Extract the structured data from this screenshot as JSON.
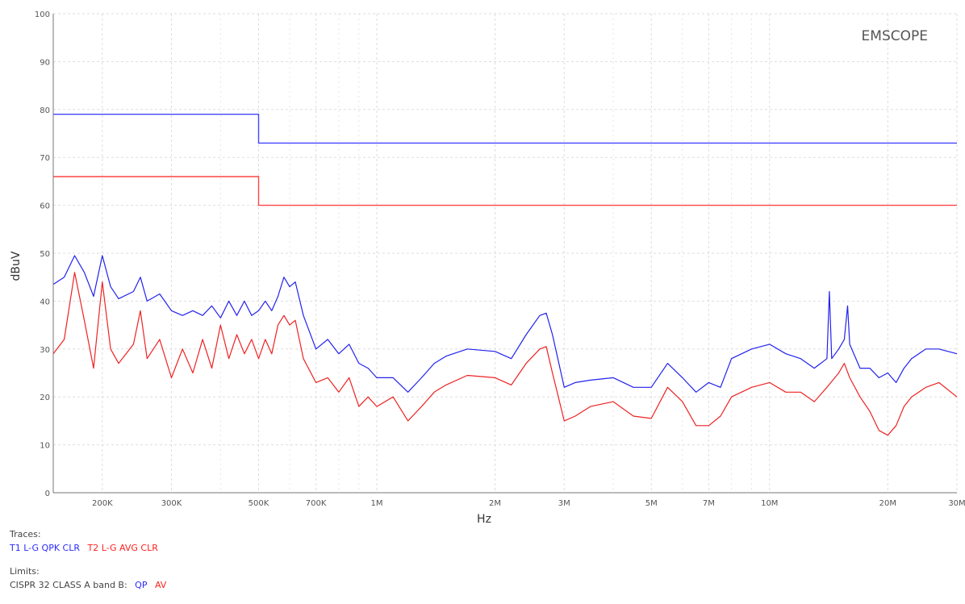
{
  "chart_data": {
    "type": "line",
    "title": "",
    "watermark": "EMSCOPE",
    "xlabel": "Hz",
    "ylabel": "dBuV",
    "xscale": "log",
    "xlim": [
      150000,
      30000000
    ],
    "ylim": [
      0,
      100
    ],
    "grid": true,
    "y_ticks": [
      0,
      10,
      20,
      30,
      40,
      50,
      60,
      70,
      80,
      90,
      100
    ],
    "x_ticks": [
      {
        "value": 200000,
        "label": "200K"
      },
      {
        "value": 300000,
        "label": "300K"
      },
      {
        "value": 500000,
        "label": "500K"
      },
      {
        "value": 700000,
        "label": "700K"
      },
      {
        "value": 1000000,
        "label": "1M"
      },
      {
        "value": 2000000,
        "label": "2M"
      },
      {
        "value": 3000000,
        "label": "3M"
      },
      {
        "value": 5000000,
        "label": "5M"
      },
      {
        "value": 7000000,
        "label": "7M"
      },
      {
        "value": 10000000,
        "label": "10M"
      },
      {
        "value": 20000000,
        "label": "20M"
      },
      {
        "value": 30000000,
        "label": "30M"
      }
    ],
    "x_minor_grid": [
      150000,
      400000,
      600000,
      800000,
      900000,
      4000000,
      6000000,
      8000000,
      9000000
    ],
    "limits": [
      {
        "name": "QP",
        "color": "#4444ff",
        "points": [
          [
            150000,
            79
          ],
          [
            500000,
            79
          ],
          [
            500000,
            73
          ],
          [
            30000000,
            73
          ]
        ]
      },
      {
        "name": "AV",
        "color": "#ff4444",
        "points": [
          [
            150000,
            66
          ],
          [
            500000,
            66
          ],
          [
            500000,
            60
          ],
          [
            30000000,
            60
          ]
        ]
      }
    ],
    "series": [
      {
        "name": "T1 L-G QPK CLR",
        "color": "#2222ee",
        "points": [
          [
            150000,
            43.5
          ],
          [
            160000,
            45
          ],
          [
            170000,
            49.5
          ],
          [
            180000,
            46
          ],
          [
            190000,
            41
          ],
          [
            200000,
            49.5
          ],
          [
            210000,
            43
          ],
          [
            220000,
            40.5
          ],
          [
            240000,
            42
          ],
          [
            250000,
            45
          ],
          [
            260000,
            40
          ],
          [
            280000,
            41.5
          ],
          [
            300000,
            38
          ],
          [
            320000,
            37
          ],
          [
            340000,
            38
          ],
          [
            360000,
            37
          ],
          [
            380000,
            39
          ],
          [
            400000,
            36.5
          ],
          [
            420000,
            40
          ],
          [
            440000,
            37
          ],
          [
            460000,
            40
          ],
          [
            480000,
            37
          ],
          [
            500000,
            38
          ],
          [
            520000,
            40
          ],
          [
            540000,
            38
          ],
          [
            560000,
            41
          ],
          [
            580000,
            45
          ],
          [
            600000,
            43
          ],
          [
            620000,
            44
          ],
          [
            650000,
            37
          ],
          [
            700000,
            30
          ],
          [
            750000,
            32
          ],
          [
            800000,
            29
          ],
          [
            850000,
            31
          ],
          [
            900000,
            27
          ],
          [
            950000,
            26
          ],
          [
            1000000,
            24
          ],
          [
            1100000,
            24
          ],
          [
            1200000,
            21
          ],
          [
            1300000,
            24
          ],
          [
            1400000,
            27
          ],
          [
            1500000,
            28.5
          ],
          [
            1700000,
            30
          ],
          [
            2000000,
            29.5
          ],
          [
            2200000,
            28
          ],
          [
            2400000,
            33
          ],
          [
            2600000,
            37
          ],
          [
            2700000,
            37.5
          ],
          [
            2800000,
            33
          ],
          [
            3000000,
            22
          ],
          [
            3200000,
            23
          ],
          [
            3500000,
            23.5
          ],
          [
            4000000,
            24
          ],
          [
            4500000,
            22
          ],
          [
            5000000,
            22
          ],
          [
            5500000,
            27
          ],
          [
            6000000,
            24
          ],
          [
            6500000,
            21
          ],
          [
            7000000,
            23
          ],
          [
            7500000,
            22
          ],
          [
            8000000,
            28
          ],
          [
            9000000,
            30
          ],
          [
            10000000,
            31
          ],
          [
            11000000,
            29
          ],
          [
            12000000,
            28
          ],
          [
            13000000,
            26
          ],
          [
            14000000,
            28
          ],
          [
            14200000,
            42
          ],
          [
            14400000,
            28
          ],
          [
            15000000,
            30
          ],
          [
            15500000,
            32
          ],
          [
            15800000,
            39
          ],
          [
            16000000,
            31
          ],
          [
            17000000,
            26
          ],
          [
            18000000,
            26
          ],
          [
            19000000,
            24
          ],
          [
            20000000,
            25
          ],
          [
            21000000,
            23
          ],
          [
            22000000,
            26
          ],
          [
            23000000,
            28
          ],
          [
            25000000,
            30
          ],
          [
            27000000,
            30
          ],
          [
            30000000,
            29
          ]
        ]
      },
      {
        "name": "T2 L-G AVG CLR",
        "color": "#ee2222",
        "points": [
          [
            150000,
            29
          ],
          [
            160000,
            32
          ],
          [
            170000,
            46
          ],
          [
            180000,
            36
          ],
          [
            190000,
            26
          ],
          [
            200000,
            44
          ],
          [
            210000,
            30
          ],
          [
            220000,
            27
          ],
          [
            240000,
            31
          ],
          [
            250000,
            38
          ],
          [
            260000,
            28
          ],
          [
            280000,
            32
          ],
          [
            300000,
            24
          ],
          [
            320000,
            30
          ],
          [
            340000,
            25
          ],
          [
            360000,
            32
          ],
          [
            380000,
            26
          ],
          [
            400000,
            35
          ],
          [
            420000,
            28
          ],
          [
            440000,
            33
          ],
          [
            460000,
            29
          ],
          [
            480000,
            32
          ],
          [
            500000,
            28
          ],
          [
            520000,
            32
          ],
          [
            540000,
            29
          ],
          [
            560000,
            35
          ],
          [
            580000,
            37
          ],
          [
            600000,
            35
          ],
          [
            620000,
            36
          ],
          [
            650000,
            28
          ],
          [
            700000,
            23
          ],
          [
            750000,
            24
          ],
          [
            800000,
            21
          ],
          [
            850000,
            24
          ],
          [
            900000,
            18
          ],
          [
            950000,
            20
          ],
          [
            1000000,
            18
          ],
          [
            1100000,
            20
          ],
          [
            1200000,
            15
          ],
          [
            1300000,
            18
          ],
          [
            1400000,
            21
          ],
          [
            1500000,
            22.5
          ],
          [
            1700000,
            24.5
          ],
          [
            2000000,
            24
          ],
          [
            2200000,
            22.5
          ],
          [
            2400000,
            27
          ],
          [
            2600000,
            30
          ],
          [
            2700000,
            30.5
          ],
          [
            2800000,
            25
          ],
          [
            3000000,
            15
          ],
          [
            3200000,
            16
          ],
          [
            3500000,
            18
          ],
          [
            4000000,
            19
          ],
          [
            4500000,
            16
          ],
          [
            5000000,
            15.5
          ],
          [
            5500000,
            22
          ],
          [
            6000000,
            19
          ],
          [
            6500000,
            14
          ],
          [
            7000000,
            14
          ],
          [
            7500000,
            16
          ],
          [
            8000000,
            20
          ],
          [
            9000000,
            22
          ],
          [
            10000000,
            23
          ],
          [
            11000000,
            21
          ],
          [
            12000000,
            21
          ],
          [
            13000000,
            19
          ],
          [
            14000000,
            22
          ],
          [
            15000000,
            25
          ],
          [
            15500000,
            27
          ],
          [
            16000000,
            24
          ],
          [
            17000000,
            20
          ],
          [
            18000000,
            17
          ],
          [
            19000000,
            13
          ],
          [
            20000000,
            12
          ],
          [
            21000000,
            14
          ],
          [
            22000000,
            18
          ],
          [
            23000000,
            20
          ],
          [
            25000000,
            22
          ],
          [
            27000000,
            23
          ],
          [
            30000000,
            20
          ]
        ]
      }
    ]
  },
  "legend": {
    "traces_title": "Traces:",
    "trace1": "T1 L-G QPK CLR",
    "trace2": "T2 L-G AVG CLR",
    "limits_title": "Limits:",
    "limit_std": "CISPR 32 CLASS A band B:",
    "limit_qp": "QP",
    "limit_av": "AV"
  }
}
